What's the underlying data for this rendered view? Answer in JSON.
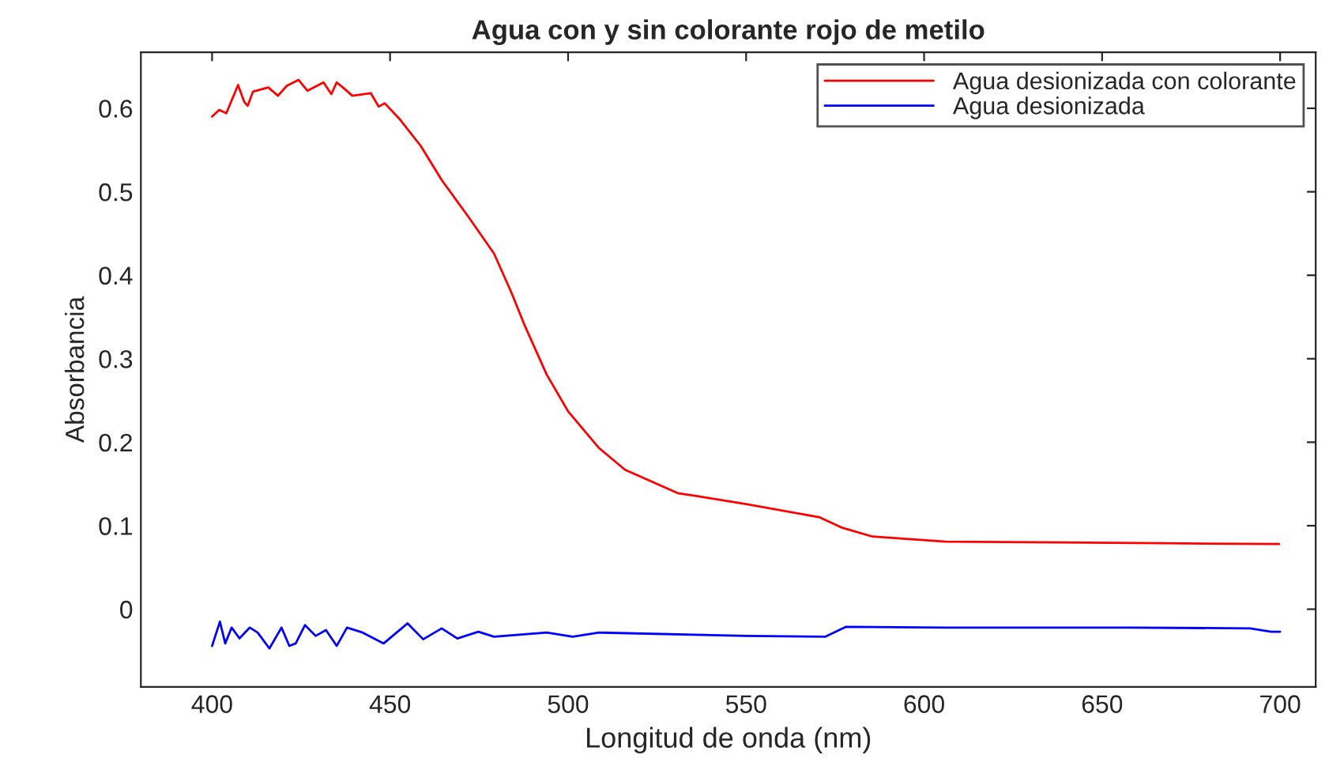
{
  "chart_data": {
    "type": "line",
    "title": "Agua con y sin colorante rojo de metilo",
    "xlabel": "Longitud de onda (nm)",
    "ylabel": "Absorbancia",
    "xlim": [
      380,
      710
    ],
    "xticks": [
      400,
      450,
      500,
      550,
      600,
      650,
      700
    ],
    "ylim": [
      -0.093,
      0.667
    ],
    "yticks": [
      0,
      0.1,
      0.2,
      0.3,
      0.4,
      0.5,
      0.6
    ],
    "grid": false,
    "legend": "top right",
    "line_style": "solid",
    "marker": "none",
    "series": [
      {
        "name": "Agua desionizada con colorante",
        "color": "#ff0000",
        "x": [
          400,
          402,
          404,
          407.3,
          409,
          410,
          411.5,
          415.8,
          418.5,
          421,
          424.3,
          426.8,
          431.3,
          433.5,
          435,
          437,
          439.4,
          444.6,
          446.8,
          448.5,
          452.7,
          458.6,
          464.5,
          472,
          479.2,
          484,
          488,
          494,
          500,
          508.7,
          516,
          530.8,
          535.3,
          550,
          570.7,
          576.7,
          585.5,
          606,
          638,
          667.5,
          699.7
        ],
        "values": [
          0.59,
          0.598,
          0.594,
          0.628,
          0.608,
          0.603,
          0.62,
          0.625,
          0.615,
          0.627,
          0.634,
          0.621,
          0.631,
          0.617,
          0.631,
          0.624,
          0.615,
          0.618,
          0.602,
          0.606,
          0.587,
          0.555,
          0.514,
          0.47,
          0.426,
          0.38,
          0.338,
          0.281,
          0.237,
          0.193,
          0.167,
          0.139,
          0.136,
          0.126,
          0.11,
          0.098,
          0.087,
          0.081,
          0.08,
          0.079,
          0.078
        ]
      },
      {
        "name": "Agua desionizada",
        "color": "#0000ff",
        "x": [
          400,
          402.2,
          403.7,
          405.5,
          407.7,
          410.6,
          412.8,
          416.1,
          419.5,
          421.7,
          423.5,
          426.1,
          429.1,
          432,
          435,
          437.9,
          442.3,
          448.2,
          454.9,
          459.3,
          464.5,
          468.9,
          474.8,
          479.2,
          494,
          501.3,
          508.7,
          550,
          572.2,
          578.1,
          606,
          657.7,
          691.6,
          697.5,
          700
        ],
        "values": [
          -0.044,
          -0.015,
          -0.041,
          -0.022,
          -0.035,
          -0.022,
          -0.028,
          -0.047,
          -0.022,
          -0.044,
          -0.041,
          -0.019,
          -0.032,
          -0.025,
          -0.044,
          -0.022,
          -0.028,
          -0.041,
          -0.017,
          -0.036,
          -0.023,
          -0.035,
          -0.027,
          -0.033,
          -0.028,
          -0.033,
          -0.028,
          -0.032,
          -0.033,
          -0.021,
          -0.022,
          -0.022,
          -0.023,
          -0.027,
          -0.027
        ]
      }
    ]
  }
}
